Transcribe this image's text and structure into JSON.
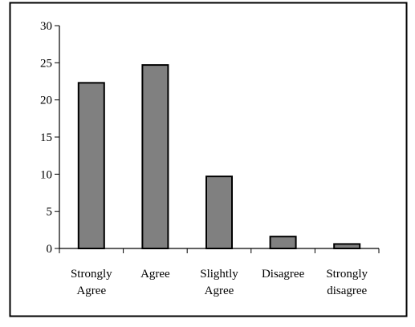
{
  "chart_data": {
    "type": "bar",
    "title": "",
    "xlabel": "",
    "ylabel": "",
    "categories": [
      "Strongly Agree",
      "Agree",
      "Slightly Agree",
      "Disagree",
      "Strongly disagree"
    ],
    "category_label_lines": [
      [
        "Strongly",
        "Agree"
      ],
      [
        "Agree"
      ],
      [
        "Slightly",
        "Agree"
      ],
      [
        "Disagree"
      ],
      [
        "Strongly",
        "disagree"
      ]
    ],
    "values": [
      22.3,
      24.7,
      9.7,
      1.6,
      0.6
    ],
    "ylim": [
      0,
      30
    ],
    "yticks": [
      "0",
      "5",
      "10",
      "15",
      "20",
      "25",
      "30"
    ],
    "grid": false,
    "legend": "none",
    "bar_color": "#808080",
    "bar_edge_color": "#000000"
  }
}
